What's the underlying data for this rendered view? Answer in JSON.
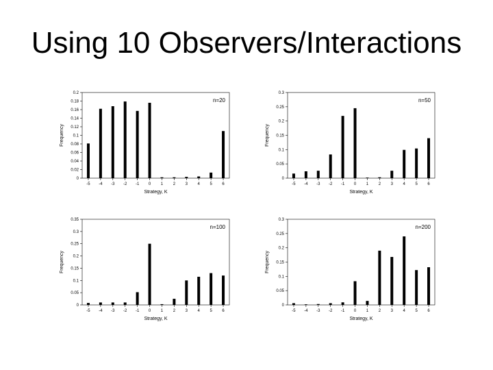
{
  "slide": {
    "title": "Using 10 Observers/Interactions"
  },
  "chart_data": [
    {
      "type": "bar",
      "annotation": "n=20",
      "xlabel": "Strategy, K",
      "ylabel": "Frequency",
      "categories": [
        "-5",
        "-4",
        "-3",
        "-2",
        "-1",
        "0",
        "1",
        "2",
        "3",
        "4",
        "5",
        "6"
      ],
      "values": [
        0.081,
        0.162,
        0.168,
        0.179,
        0.157,
        0.176,
        0.002,
        0.002,
        0.003,
        0.004,
        0.013,
        0.11
      ],
      "ylim": [
        0,
        0.2
      ],
      "yticks": [
        "0",
        "0.02",
        "0.04",
        "0.06",
        "0.08",
        "0.1",
        "0.12",
        "0.14",
        "0.16",
        "0.18",
        "0.2"
      ]
    },
    {
      "type": "bar",
      "annotation": "n=50",
      "xlabel": "Strategy, K",
      "ylabel": "Frequency",
      "categories": [
        "-5",
        "-4",
        "-3",
        "-2",
        "-1",
        "0",
        "1",
        "2",
        "3",
        "4",
        "5",
        "6"
      ],
      "values": [
        0.016,
        0.024,
        0.026,
        0.083,
        0.218,
        0.245,
        0.002,
        0.003,
        0.026,
        0.099,
        0.104,
        0.14
      ],
      "ylim": [
        0,
        0.3
      ],
      "yticks": [
        "0",
        "0.05",
        "0.1",
        "0.15",
        "0.2",
        "0.25",
        "0.3"
      ]
    },
    {
      "type": "bar",
      "annotation": "n=100",
      "xlabel": "Strategy, K",
      "ylabel": "Frequency",
      "categories": [
        "-5",
        "-4",
        "-3",
        "-2",
        "-1",
        "0",
        "1",
        "2",
        "3",
        "4",
        "5",
        "6"
      ],
      "values": [
        0.008,
        0.01,
        0.01,
        0.01,
        0.052,
        0.25,
        0.003,
        0.025,
        0.1,
        0.115,
        0.13,
        0.12
      ],
      "ylim": [
        0,
        0.35
      ],
      "yticks": [
        "0",
        "0.05",
        "0.1",
        "0.15",
        "0.2",
        "0.25",
        "0.3",
        "0.35"
      ]
    },
    {
      "type": "bar",
      "annotation": "n=200",
      "xlabel": "Strategy, K",
      "ylabel": "Frequency",
      "categories": [
        "-5",
        "-4",
        "-3",
        "-2",
        "-1",
        "0",
        "1",
        "2",
        "3",
        "4",
        "5",
        "6"
      ],
      "values": [
        0.006,
        0.002,
        0.003,
        0.006,
        0.009,
        0.083,
        0.014,
        0.19,
        0.168,
        0.24,
        0.122,
        0.132
      ],
      "ylim": [
        0,
        0.3
      ],
      "yticks": [
        "0",
        "0.05",
        "0.1",
        "0.15",
        "0.2",
        "0.25",
        "0.3"
      ]
    }
  ]
}
